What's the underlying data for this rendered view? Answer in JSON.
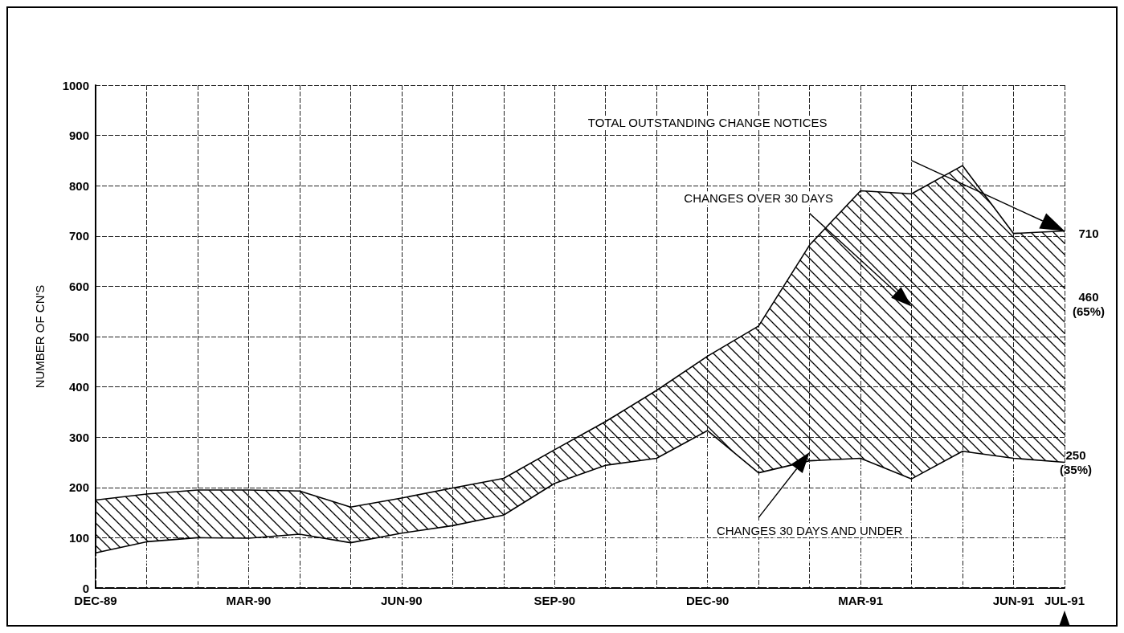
{
  "chart_data": {
    "type": "area",
    "stacked": true,
    "ylabel": "NUMBER OF CN'S",
    "categories": [
      "DEC-89",
      null,
      null,
      "MAR-90",
      null,
      null,
      "JUN-90",
      null,
      null,
      "SEP-90",
      null,
      null,
      "DEC-90",
      null,
      null,
      "MAR-91",
      null,
      null,
      "JUN-91",
      "JUL-91"
    ],
    "series": [
      {
        "name": "CHANGES 30 DAYS AND UNDER",
        "color": "#ffffff",
        "values": [
          70,
          92,
          100,
          99,
          107,
          90,
          109,
          124,
          145,
          208,
          244,
          258,
          313,
          229,
          253,
          258,
          217,
          272,
          258,
          250
        ],
        "value_labels": [
          null,
          null,
          null,
          null,
          null,
          null,
          null,
          null,
          null,
          null,
          null,
          null,
          null,
          null,
          null,
          null,
          null,
          null,
          null,
          "250 (35%)"
        ]
      },
      {
        "name": "CHANGES OVER 30 DAYS",
        "color": "#000000",
        "values": [
          105,
          95,
          95,
          96,
          86,
          71,
          70,
          75,
          73,
          67,
          87,
          135,
          148,
          292,
          429,
          532,
          567,
          568,
          447,
          460
        ],
        "value_labels": [
          null,
          null,
          null,
          null,
          null,
          null,
          null,
          null,
          null,
          null,
          null,
          null,
          null,
          null,
          null,
          null,
          null,
          null,
          null,
          null
        ]
      }
    ],
    "annotations": [
      "TOTAL OUTSTANDING CHANGE NOTICES",
      "710",
      "460 (65%)"
    ],
    "ylim": [
      0,
      1000
    ],
    "yticks": [
      0,
      100,
      200,
      300,
      400,
      500,
      600,
      700,
      800,
      900,
      1000
    ],
    "grid": true,
    "legend": false,
    "marker": "none",
    "line_style": "solid"
  }
}
